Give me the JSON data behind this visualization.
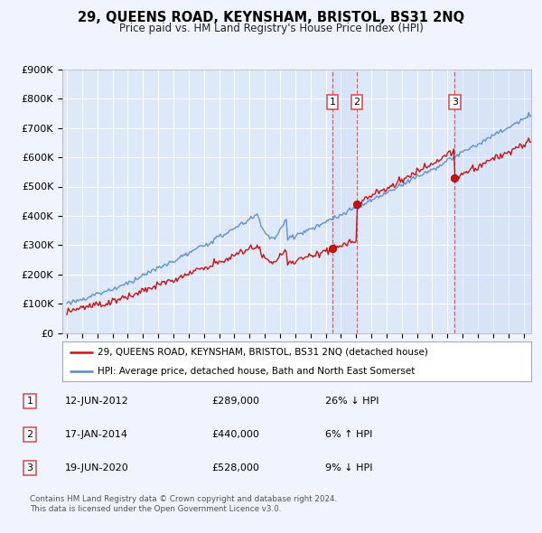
{
  "title": "29, QUEENS ROAD, KEYNSHAM, BRISTOL, BS31 2NQ",
  "subtitle": "Price paid vs. HM Land Registry's House Price Index (HPI)",
  "ylim": [
    0,
    900000
  ],
  "yticks": [
    0,
    100000,
    200000,
    300000,
    400000,
    500000,
    600000,
    700000,
    800000,
    900000
  ],
  "ytick_labels": [
    "£0",
    "£100K",
    "£200K",
    "£300K",
    "£400K",
    "£500K",
    "£600K",
    "£700K",
    "£800K",
    "£900K"
  ],
  "background_color": "#f0f4ff",
  "plot_bg_color": "#dde8f8",
  "grid_color": "#ffffff",
  "hpi_color": "#5588cc",
  "price_color": "#cc1111",
  "shade_color": "#ccddf8",
  "vline_color": "#dd4444",
  "transactions": [
    {
      "num": 1,
      "date_x": 2012.45,
      "price": 289000,
      "label": "12-JUN-2012",
      "amount": "£289,000",
      "hpi_pct": "26%",
      "hpi_dir": "↓"
    },
    {
      "num": 2,
      "date_x": 2014.05,
      "price": 440000,
      "label": "17-JAN-2014",
      "amount": "£440,000",
      "hpi_pct": "6%",
      "hpi_dir": "↑"
    },
    {
      "num": 3,
      "date_x": 2020.47,
      "price": 528000,
      "label": "19-JUN-2020",
      "amount": "£528,000",
      "hpi_pct": "9%",
      "hpi_dir": "↓"
    }
  ],
  "legend_entries": [
    "29, QUEENS ROAD, KEYNSHAM, BRISTOL, BS31 2NQ (detached house)",
    "HPI: Average price, detached house, Bath and North East Somerset"
  ],
  "footnote": "Contains HM Land Registry data © Crown copyright and database right 2024.\nThis data is licensed under the Open Government Licence v3.0.",
  "xmin": 1994.7,
  "xmax": 2025.5
}
